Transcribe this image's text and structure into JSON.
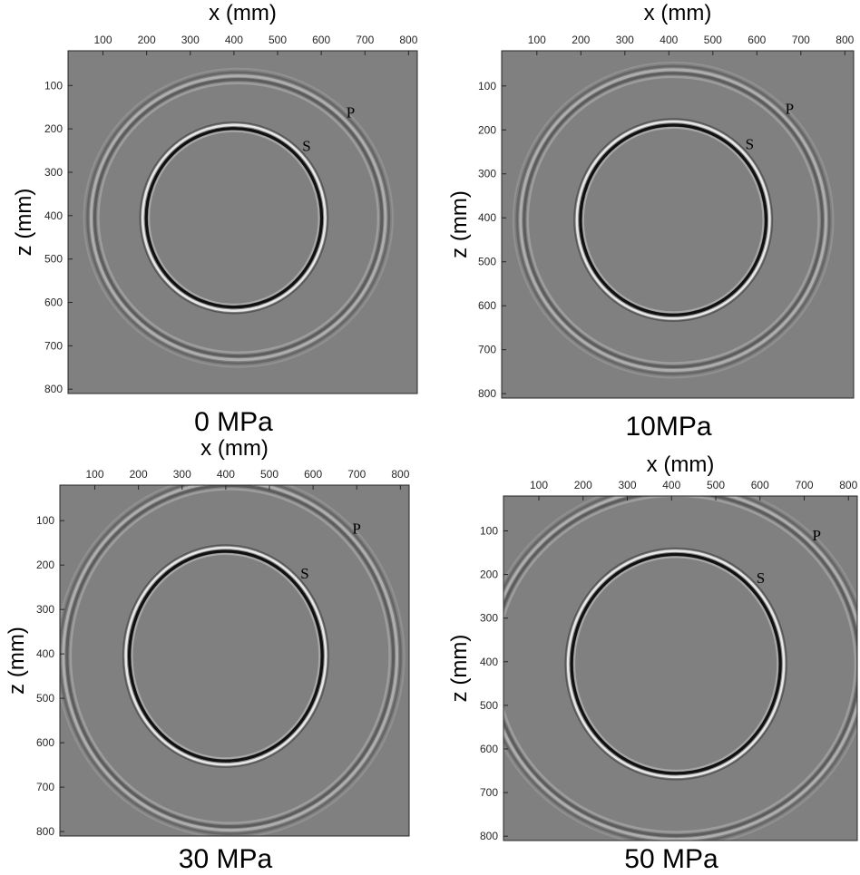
{
  "chart_data": [
    {
      "type": "heatmap",
      "title": "0 MPa",
      "xlabel": "x (mm)",
      "ylabel": "z (mm)",
      "xlim": [
        20,
        820
      ],
      "ylim": [
        20,
        810
      ],
      "x_ticks": [
        "100",
        "200",
        "300",
        "400",
        "500",
        "600",
        "700",
        "800"
      ],
      "y_ticks": [
        "100",
        "200",
        "300",
        "400",
        "500",
        "600",
        "700",
        "800"
      ],
      "wavefronts": [
        {
          "label": "P",
          "center": [
            410,
            405
          ],
          "rx": 335,
          "rz": 325
        },
        {
          "label": "S",
          "center": [
            400,
            405
          ],
          "rx": 205,
          "rz": 210
        }
      ]
    },
    {
      "type": "heatmap",
      "title": "10MPa",
      "xlabel": "x (mm)",
      "ylabel": "z (mm)",
      "xlim": [
        20,
        820
      ],
      "ylim": [
        20,
        810
      ],
      "x_ticks": [
        "100",
        "200",
        "300",
        "400",
        "500",
        "600",
        "700",
        "800"
      ],
      "y_ticks": [
        "100",
        "200",
        "300",
        "400",
        "500",
        "600",
        "700",
        "800"
      ],
      "wavefronts": [
        {
          "label": "P",
          "center": [
            410,
            405
          ],
          "rx": 345,
          "rz": 340
        },
        {
          "label": "S",
          "center": [
            410,
            405
          ],
          "rx": 215,
          "rz": 220
        }
      ]
    },
    {
      "type": "heatmap",
      "title": "30 MPa",
      "xlabel": "x (mm)",
      "ylabel": "z (mm)",
      "xlim": [
        20,
        820
      ],
      "ylim": [
        20,
        810
      ],
      "x_ticks": [
        "100",
        "200",
        "300",
        "400",
        "500",
        "600",
        "700",
        "800"
      ],
      "y_ticks": [
        "100",
        "200",
        "300",
        "400",
        "500",
        "600",
        "700",
        "800"
      ],
      "wavefronts": [
        {
          "label": "P",
          "center": [
            410,
            405
          ],
          "rx": 380,
          "rz": 390
        },
        {
          "label": "S",
          "center": [
            400,
            405
          ],
          "rx": 225,
          "rz": 240
        }
      ]
    },
    {
      "type": "heatmap",
      "title": "50 MPa",
      "xlabel": "x (mm)",
      "ylabel": "z (mm)",
      "xlim": [
        20,
        820
      ],
      "ylim": [
        20,
        810
      ],
      "x_ticks": [
        "100",
        "200",
        "300",
        "400",
        "500",
        "600",
        "700",
        "800"
      ],
      "y_ticks": [
        "100",
        "200",
        "300",
        "400",
        "500",
        "600",
        "700",
        "800"
      ],
      "wavefronts": [
        {
          "label": "P",
          "center": [
            410,
            405
          ],
          "rx": 420,
          "rz": 400
        },
        {
          "label": "S",
          "center": [
            410,
            405
          ],
          "rx": 240,
          "rz": 255
        }
      ]
    }
  ],
  "colors": {
    "background": "#808080",
    "dark": "#0a0a0a",
    "light": "#f2f2f2"
  }
}
